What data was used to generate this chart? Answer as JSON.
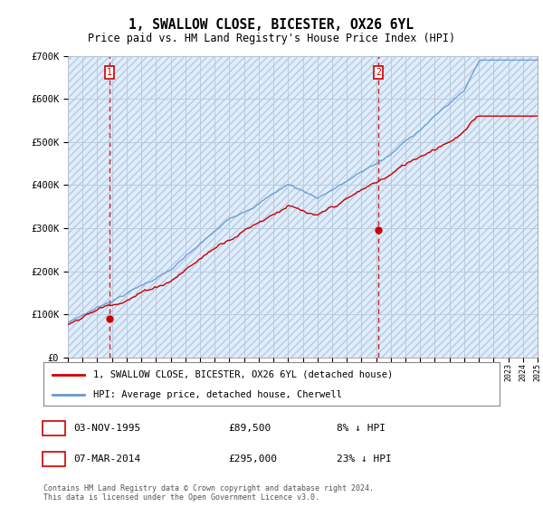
{
  "title": "1, SWALLOW CLOSE, BICESTER, OX26 6YL",
  "subtitle": "Price paid vs. HM Land Registry's House Price Index (HPI)",
  "ylim": [
    0,
    700000
  ],
  "yticks": [
    0,
    100000,
    200000,
    300000,
    400000,
    500000,
    600000,
    700000
  ],
  "ytick_labels": [
    "£0",
    "£100K",
    "£200K",
    "£300K",
    "£400K",
    "£500K",
    "£600K",
    "£700K"
  ],
  "chart_bg_color": "#ddeeff",
  "hatch_color": "#c0c8d8",
  "grid_color": "#b8c8d8",
  "hpi_color": "#6699cc",
  "price_color": "#cc0000",
  "marker1_date": 1995.84,
  "marker1_price": 89500,
  "marker2_date": 2014.17,
  "marker2_price": 295000,
  "legend_entries": [
    "1, SWALLOW CLOSE, BICESTER, OX26 6YL (detached house)",
    "HPI: Average price, detached house, Cherwell"
  ],
  "table_rows": [
    [
      "1",
      "03-NOV-1995",
      "£89,500",
      "8% ↓ HPI"
    ],
    [
      "2",
      "07-MAR-2014",
      "£295,000",
      "23% ↓ HPI"
    ]
  ],
  "footer": "Contains HM Land Registry data © Crown copyright and database right 2024.\nThis data is licensed under the Open Government Licence v3.0.",
  "xstart": 1993,
  "xend": 2025
}
